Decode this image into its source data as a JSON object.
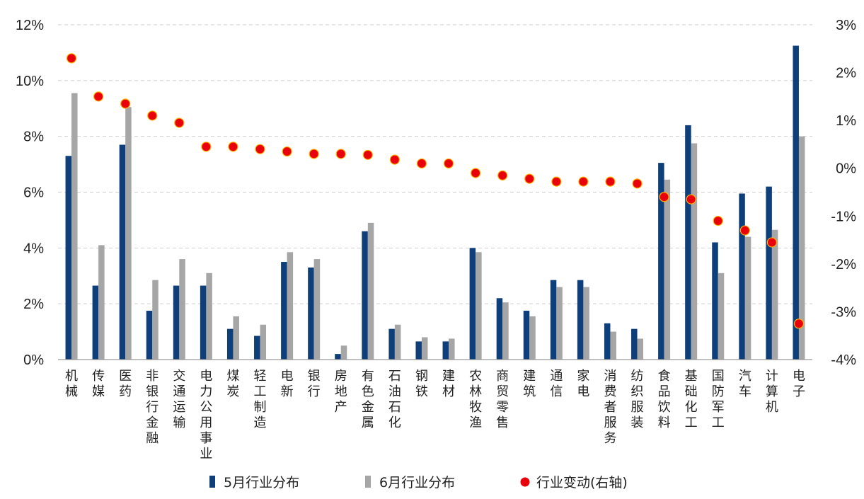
{
  "chart_data": {
    "type": "bar",
    "categories": [
      "机械",
      "传媒",
      "医药",
      "非银行金融",
      "交通运输",
      "电力公用事业",
      "煤炭",
      "轻工制造",
      "电新",
      "银行",
      "房地产",
      "有色金属",
      "石油石化",
      "钢铁",
      "建材",
      "农林牧渔",
      "商贸零售",
      "建筑",
      "通信",
      "家电",
      "消费者服务",
      "纺织服装",
      "食品饮料",
      "基础化工",
      "国防军工",
      "汽车",
      "计算机",
      "电子"
    ],
    "series": [
      {
        "name": "5月行业分布",
        "axis": "left",
        "color": "#0f3f7a",
        "values": [
          7.3,
          2.65,
          7.7,
          1.75,
          2.65,
          2.65,
          1.1,
          0.85,
          3.5,
          3.3,
          0.2,
          4.6,
          1.1,
          0.65,
          0.65,
          4.0,
          2.2,
          1.75,
          2.85,
          2.85,
          1.3,
          1.1,
          7.05,
          8.4,
          4.2,
          5.95,
          6.2,
          11.25
        ]
      },
      {
        "name": "6月行业分布",
        "axis": "left",
        "color": "#a6a6a6",
        "values": [
          9.55,
          4.1,
          9.05,
          2.85,
          3.6,
          3.1,
          1.55,
          1.25,
          3.85,
          3.6,
          0.5,
          4.9,
          1.25,
          0.8,
          0.75,
          3.85,
          2.05,
          1.55,
          2.6,
          2.6,
          1.0,
          0.75,
          6.45,
          7.75,
          3.1,
          4.4,
          4.65,
          8.0
        ]
      },
      {
        "name": "行业变动(右轴)",
        "axis": "right",
        "type": "scatter",
        "color": "#e8000b",
        "values": [
          2.3,
          1.5,
          1.35,
          1.1,
          0.95,
          0.45,
          0.45,
          0.4,
          0.35,
          0.3,
          0.3,
          0.28,
          0.18,
          0.1,
          0.1,
          -0.1,
          -0.15,
          -0.22,
          -0.28,
          -0.28,
          -0.28,
          -0.32,
          -0.6,
          -0.65,
          -1.1,
          -1.3,
          -1.55,
          -3.25
        ]
      }
    ],
    "y_left": {
      "min": 0,
      "max": 12,
      "step": 2,
      "format": "percent"
    },
    "y_right": {
      "min": -4,
      "max": 3,
      "step": 1,
      "format": "percent"
    },
    "y_left_ticks": [
      "0%",
      "2%",
      "4%",
      "6%",
      "8%",
      "10%",
      "12%"
    ],
    "y_right_ticks": [
      "-4%",
      "-3%",
      "-2%",
      "-1%",
      "0%",
      "1%",
      "2%",
      "3%"
    ],
    "grid": "horizontal-dashed",
    "legend": "bottom"
  }
}
